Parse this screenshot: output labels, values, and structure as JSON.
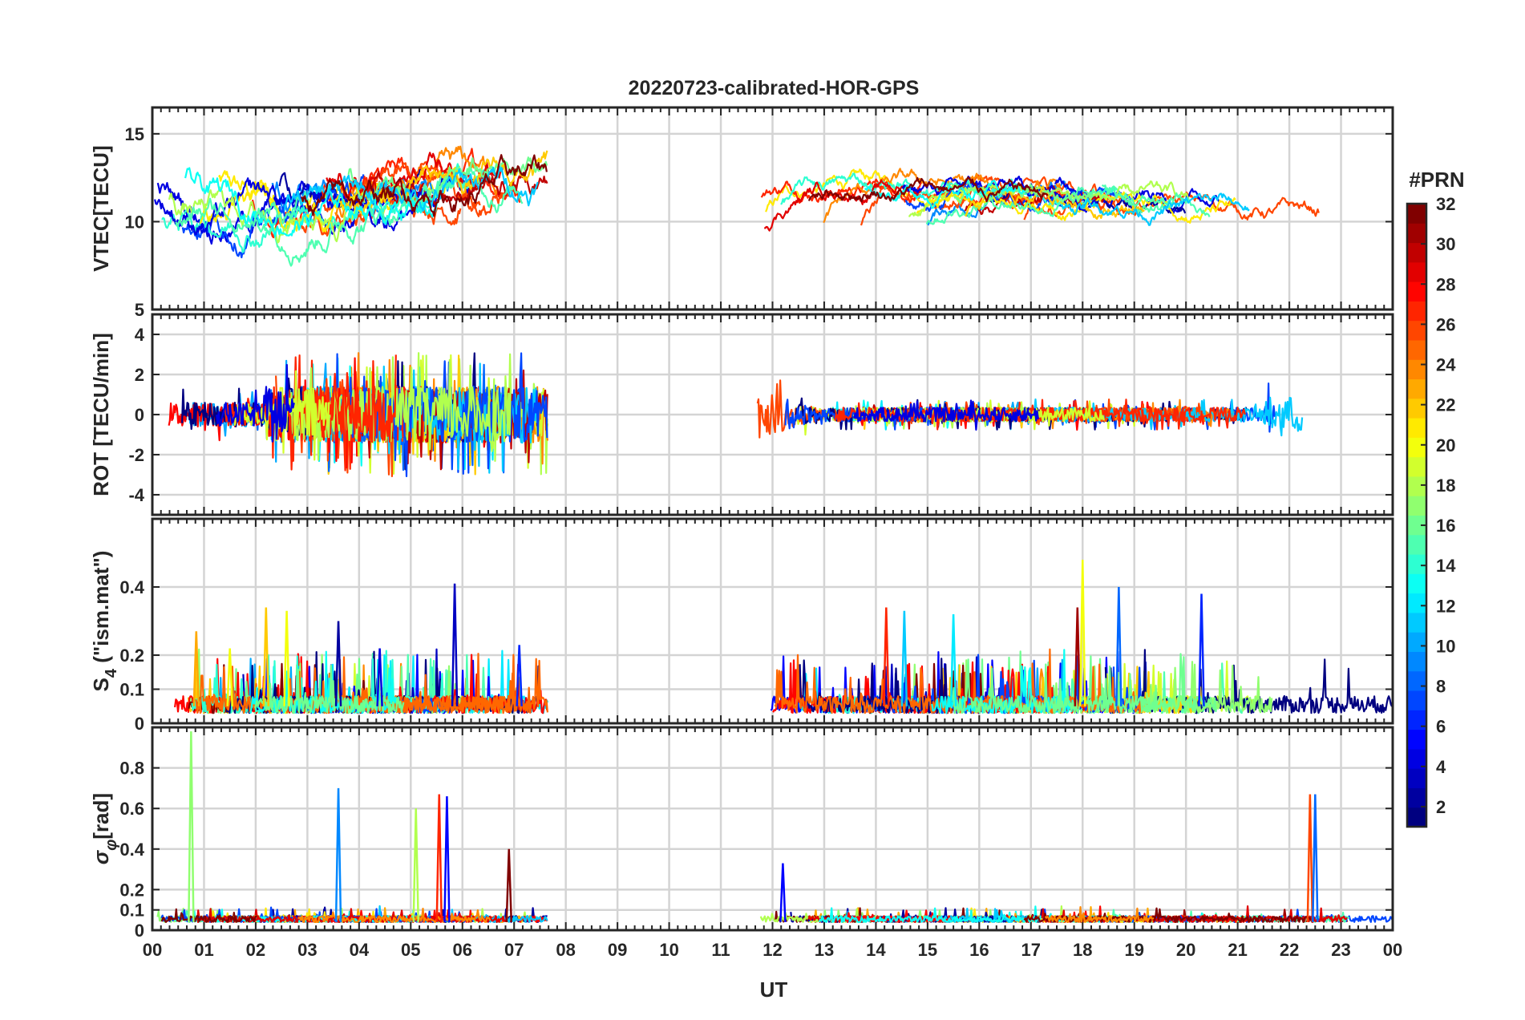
{
  "chart_data": {
    "type": "line",
    "title": "20220723-calibrated-HOR-GPS",
    "xlabel": "UT",
    "x_tick_labels": [
      "00",
      "01",
      "02",
      "03",
      "04",
      "05",
      "06",
      "07",
      "08",
      "09",
      "10",
      "11",
      "12",
      "13",
      "14",
      "15",
      "16",
      "17",
      "18",
      "19",
      "20",
      "21",
      "22",
      "23",
      "00"
    ],
    "xlim_hours": [
      0,
      24
    ],
    "data_gap_hours": [
      7.65,
      11.7
    ],
    "grid": true,
    "colorbar": {
      "title": "#PRN",
      "range": [
        1,
        32
      ],
      "tick_labels": [
        "2",
        "4",
        "6",
        "8",
        "10",
        "12",
        "14",
        "16",
        "18",
        "20",
        "22",
        "24",
        "26",
        "28",
        "30",
        "32"
      ],
      "colormap": "jet"
    },
    "panels": [
      {
        "id": "vtec",
        "ylabel": "VTEC[TECU]",
        "ylim": [
          5,
          16.5
        ],
        "yticks": [
          5,
          10,
          15
        ],
        "ytick_labels": [
          "5",
          "10",
          "15"
        ],
        "trend": {
          "level_morning": 10.5,
          "level_peak": 12.5,
          "level_evening": 10.5,
          "noise": 0.8
        }
      },
      {
        "id": "rot",
        "ylabel": "ROT [TECU/min]",
        "ylim": [
          -5,
          5
        ],
        "yticks": [
          -4,
          -2,
          0,
          2,
          4
        ],
        "ytick_labels": [
          "-4",
          "-2",
          "0",
          "2",
          "4"
        ],
        "trend": {
          "amplitude_morning": 1.2,
          "amplitude_quiet": 0.25,
          "amplitude_late": 0.8
        }
      },
      {
        "id": "s4",
        "ylabel_main": "S",
        "ylabel_sub": "4",
        "ylabel_rest": " (\"ism.mat\")",
        "ylim": [
          0,
          0.6
        ],
        "yticks": [
          0,
          0.1,
          0.2,
          0.4
        ],
        "ytick_labels": [
          "0",
          "0.1",
          "0.2",
          "0.4"
        ],
        "spikes": [
          {
            "t": 0.85,
            "v": 0.27
          },
          {
            "t": 1.5,
            "v": 0.22
          },
          {
            "t": 2.2,
            "v": 0.34
          },
          {
            "t": 2.6,
            "v": 0.33
          },
          {
            "t": 3.6,
            "v": 0.3
          },
          {
            "t": 4.4,
            "v": 0.22
          },
          {
            "t": 5.85,
            "v": 0.41
          },
          {
            "t": 7.1,
            "v": 0.23
          },
          {
            "t": 14.2,
            "v": 0.34
          },
          {
            "t": 14.55,
            "v": 0.33
          },
          {
            "t": 15.5,
            "v": 0.32
          },
          {
            "t": 17.9,
            "v": 0.34
          },
          {
            "t": 18.0,
            "v": 0.48
          },
          {
            "t": 18.7,
            "v": 0.4
          },
          {
            "t": 20.3,
            "v": 0.38
          }
        ]
      },
      {
        "id": "sigma_phi",
        "ylabel_main": "σ",
        "ylabel_sub": "φ",
        "ylabel_rest": "[rad]",
        "ylim": [
          0,
          1
        ],
        "yticks": [
          0,
          0.1,
          0.2,
          0.4,
          0.6,
          0.8
        ],
        "ytick_labels": [
          "0",
          "0.1",
          "0.2",
          "0.4",
          "0.6",
          "0.8"
        ],
        "spikes": [
          {
            "t": 0.75,
            "v": 0.98
          },
          {
            "t": 3.6,
            "v": 0.7
          },
          {
            "t": 5.1,
            "v": 0.6
          },
          {
            "t": 5.55,
            "v": 0.67
          },
          {
            "t": 5.7,
            "v": 0.66
          },
          {
            "t": 6.9,
            "v": 0.4
          },
          {
            "t": 12.2,
            "v": 0.33
          },
          {
            "t": 22.4,
            "v": 0.67
          },
          {
            "t": 22.5,
            "v": 0.67
          }
        ]
      }
    ]
  }
}
